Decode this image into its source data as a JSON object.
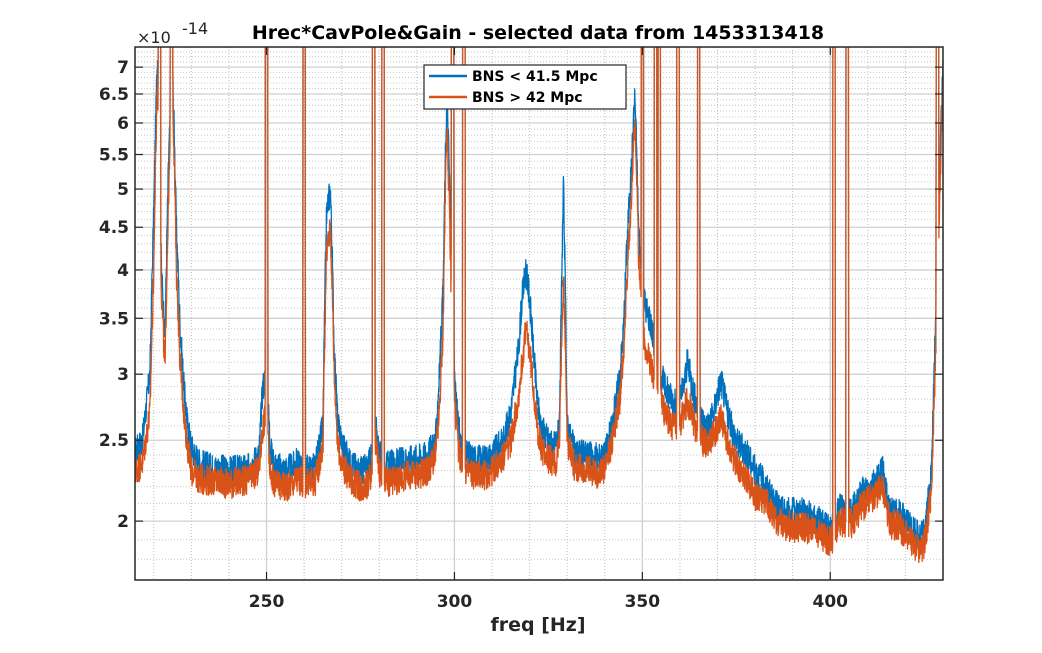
{
  "chart_data": {
    "type": "line",
    "title": "Hrec*CavPole&Gain - selected data from 1453313418",
    "xlabel": "freq [Hz]",
    "ylabel": "",
    "x_scale": "linear",
    "y_scale": "log",
    "xlim": [
      215,
      430
    ],
    "ylim": [
      1.7,
      7.4
    ],
    "y_multiplier_label": "×10",
    "y_multiplier_exponent": "-14",
    "x_ticks": [
      250,
      300,
      350,
      400
    ],
    "x_tick_labels": [
      "250",
      "300",
      "350",
      "400"
    ],
    "y_ticks": [
      2,
      2.5,
      3,
      3.5,
      4,
      4.5,
      5,
      5.5,
      6,
      6.5,
      7
    ],
    "y_tick_labels": [
      "2",
      "2.5",
      "3",
      "3.5",
      "4",
      "4.5",
      "5",
      "5.5",
      "6",
      "6.5",
      "7"
    ],
    "grid": true,
    "minor_grid": true,
    "legend_position": "top-center",
    "colors": {
      "series1": "#0072BD",
      "series2": "#D95319"
    },
    "series": [
      {
        "name": "BNS < 41.5 Mpc",
        "color": "#0072BD",
        "x": [
          215,
          217,
          219,
          220,
          221,
          222,
          223,
          224,
          225,
          226,
          227,
          228,
          229,
          230,
          232,
          235,
          240,
          245,
          248,
          249,
          250,
          251,
          252,
          255,
          257,
          258,
          260,
          263,
          265,
          266,
          267,
          268,
          269,
          270,
          272,
          275,
          277,
          278,
          279,
          280,
          282,
          285,
          288,
          290,
          293,
          295,
          296,
          297,
          298,
          299,
          300,
          301,
          302,
          303,
          305,
          308,
          310,
          313,
          315,
          317,
          318,
          319,
          320,
          321,
          322,
          323,
          325,
          327,
          328,
          329,
          330,
          332,
          335,
          338,
          340,
          342,
          344,
          345,
          346,
          347,
          348,
          349,
          350,
          351,
          352,
          353,
          354,
          355,
          356,
          357,
          358,
          359,
          360,
          361,
          362,
          363,
          364,
          365,
          366,
          367,
          368,
          369,
          370,
          371,
          372,
          373,
          375,
          378,
          380,
          383,
          385,
          388,
          390,
          393,
          395,
          397,
          398,
          399,
          400,
          401,
          402,
          403,
          405,
          406,
          407,
          408,
          410,
          412,
          414,
          415,
          416,
          418,
          420,
          422,
          424,
          425,
          426,
          427,
          428,
          429,
          430
        ],
        "y": [
          2.42,
          2.5,
          3.0,
          4.7,
          7.3,
          4.0,
          3.3,
          5.5,
          6.9,
          4.5,
          3.4,
          2.9,
          2.6,
          2.45,
          2.35,
          2.32,
          2.3,
          2.31,
          2.4,
          2.9,
          3.0,
          2.45,
          2.33,
          2.3,
          2.32,
          2.35,
          2.3,
          2.32,
          2.6,
          4.7,
          5.0,
          3.2,
          2.6,
          2.5,
          2.35,
          2.3,
          2.32,
          2.4,
          2.6,
          2.4,
          2.33,
          2.35,
          2.37,
          2.38,
          2.4,
          2.5,
          3.0,
          3.8,
          6.5,
          4.5,
          3.0,
          2.6,
          2.45,
          2.4,
          2.38,
          2.37,
          2.4,
          2.5,
          2.7,
          3.2,
          3.7,
          4.0,
          3.7,
          3.2,
          2.8,
          2.6,
          2.5,
          2.45,
          2.6,
          5.0,
          2.6,
          2.42,
          2.4,
          2.38,
          2.4,
          2.6,
          3.0,
          3.4,
          4.4,
          5.2,
          6.5,
          4.5,
          3.8,
          3.6,
          3.5,
          3.3,
          3.2,
          3.0,
          2.9,
          2.85,
          2.8,
          2.75,
          2.8,
          2.9,
          3.1,
          2.95,
          2.8,
          2.7,
          2.65,
          2.6,
          2.62,
          2.7,
          2.85,
          2.95,
          2.8,
          2.65,
          2.5,
          2.4,
          2.3,
          2.2,
          2.1,
          2.05,
          2.05,
          2.05,
          2.02,
          2.0,
          1.98,
          1.96,
          1.95,
          1.97,
          2.05,
          2.08,
          2.05,
          2.07,
          2.1,
          2.15,
          2.2,
          2.22,
          2.3,
          2.15,
          2.05,
          2.05,
          2.0,
          1.95,
          1.92,
          1.95,
          2.1,
          2.3,
          3.4,
          5.0,
          7.0
        ]
      },
      {
        "name": "BNS > 42 Mpc",
        "color": "#D95319",
        "x": [
          215,
          217,
          219,
          220,
          221,
          222,
          223,
          224,
          225,
          226,
          227,
          228,
          229,
          230,
          232,
          235,
          240,
          245,
          248,
          249,
          250,
          251,
          252,
          255,
          257,
          258,
          260,
          263,
          265,
          266,
          267,
          268,
          269,
          270,
          272,
          275,
          277,
          278,
          279,
          280,
          282,
          285,
          288,
          290,
          293,
          295,
          296,
          297,
          298,
          299,
          300,
          301,
          302,
          303,
          305,
          308,
          310,
          313,
          315,
          317,
          318,
          319,
          320,
          321,
          322,
          323,
          325,
          327,
          328,
          329,
          330,
          332,
          335,
          338,
          340,
          342,
          344,
          345,
          346,
          347,
          348,
          349,
          350,
          351,
          352,
          353,
          354,
          355,
          356,
          357,
          358,
          359,
          360,
          361,
          362,
          363,
          364,
          365,
          366,
          367,
          368,
          369,
          370,
          371,
          372,
          373,
          375,
          378,
          380,
          383,
          385,
          388,
          390,
          393,
          395,
          397,
          398,
          399,
          400,
          401,
          402,
          403,
          405,
          406,
          407,
          408,
          410,
          412,
          414,
          415,
          416,
          418,
          420,
          422,
          424,
          425,
          426,
          427,
          428,
          429,
          430
        ],
        "y": [
          2.3,
          2.35,
          2.7,
          4.0,
          6.8,
          3.8,
          3.0,
          5.0,
          6.5,
          4.0,
          3.1,
          2.7,
          2.45,
          2.3,
          2.25,
          2.24,
          2.22,
          2.24,
          2.3,
          2.6,
          2.7,
          2.3,
          2.22,
          2.2,
          2.22,
          2.25,
          2.22,
          2.24,
          2.45,
          4.2,
          4.5,
          3.0,
          2.45,
          2.35,
          2.25,
          2.2,
          2.22,
          2.3,
          2.5,
          2.3,
          2.22,
          2.25,
          2.27,
          2.28,
          2.3,
          2.4,
          2.7,
          3.4,
          6.0,
          4.0,
          2.8,
          2.45,
          2.35,
          2.3,
          2.28,
          2.27,
          2.3,
          2.38,
          2.5,
          2.8,
          3.1,
          3.4,
          3.2,
          2.9,
          2.6,
          2.45,
          2.38,
          2.35,
          2.5,
          4.0,
          2.5,
          2.32,
          2.3,
          2.28,
          2.3,
          2.5,
          2.8,
          3.2,
          4.0,
          4.8,
          6.0,
          4.2,
          3.4,
          3.2,
          3.1,
          3.0,
          2.9,
          2.8,
          2.7,
          2.65,
          2.6,
          2.58,
          2.6,
          2.7,
          2.8,
          2.7,
          2.6,
          2.55,
          2.5,
          2.48,
          2.5,
          2.55,
          2.6,
          2.65,
          2.55,
          2.45,
          2.35,
          2.25,
          2.15,
          2.1,
          2.02,
          1.98,
          1.97,
          1.97,
          1.95,
          1.93,
          1.92,
          1.9,
          1.9,
          1.92,
          1.98,
          2.0,
          1.98,
          2.0,
          2.03,
          2.07,
          2.12,
          2.14,
          2.2,
          2.08,
          1.98,
          1.98,
          1.93,
          1.88,
          1.85,
          1.88,
          2.0,
          2.2,
          3.1,
          4.6,
          6.8
        ]
      }
    ],
    "spike_lines_hz": [
      221.5,
      224.7,
      250,
      260,
      278.5,
      281,
      299.5,
      302.5,
      350,
      353.5,
      354.5,
      359.5,
      365,
      401,
      404.5,
      428.5
    ]
  }
}
